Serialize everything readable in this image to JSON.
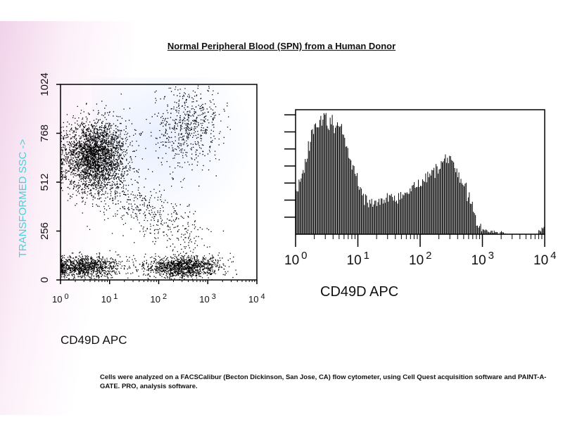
{
  "title": "Normal Peripheral Blood (SPN) from a Human Donor",
  "footnote": "Cells were analyzed on a FACSCalibur (Becton Dickinson, San Jose, CA) flow cytometer, using Cell Quest acquisition software and PAINT-A-GATE. PRO, analysis software.",
  "colors": {
    "ylabel": "#4fd0d8",
    "ink": "#000000"
  },
  "chart_data": [
    {
      "type": "scatter",
      "xlabel": "CD49D APC",
      "ylabel": "TRANSFORMED SSC ->",
      "x_scale": "log",
      "xlim": [
        1,
        10000
      ],
      "ylim": [
        0,
        1024
      ],
      "x_ticks": [
        {
          "base": "10",
          "exp": "0",
          "value": 1
        },
        {
          "base": "10",
          "exp": "1",
          "value": 10
        },
        {
          "base": "10",
          "exp": "2",
          "value": 100
        },
        {
          "base": "10",
          "exp": "3",
          "value": 1000
        },
        {
          "base": "10",
          "exp": "4",
          "value": 10000
        }
      ],
      "y_ticks": [
        "0",
        "256",
        "512",
        "768",
        "1024"
      ],
      "populations": [
        {
          "x_center": 5,
          "y_center": 650,
          "count_share": 0.45,
          "note": "dense upper-left cluster"
        },
        {
          "x_center": 3,
          "y_center": 70,
          "count_share": 0.17,
          "note": "lower-left cluster"
        },
        {
          "x_center": 300,
          "y_center": 70,
          "count_share": 0.2,
          "note": "lower-right cluster"
        },
        {
          "x_center": 400,
          "y_center": 800,
          "count_share": 0.1,
          "note": "upper-right diffuse"
        },
        {
          "x_center": 50,
          "y_center": 350,
          "count_share": 0.08,
          "note": "diagonal scatter"
        }
      ]
    },
    {
      "type": "bar",
      "subtype": "histogram",
      "xlabel": "CD49D APC",
      "x_scale": "log",
      "xlim": [
        1,
        10000
      ],
      "x_ticks": [
        {
          "base": "10",
          "exp": "0",
          "value": 1
        },
        {
          "base": "10",
          "exp": "1",
          "value": 10
        },
        {
          "base": "10",
          "exp": "2",
          "value": 100
        },
        {
          "base": "10",
          "exp": "3",
          "value": 1000
        },
        {
          "base": "10",
          "exp": "4",
          "value": 10000
        }
      ],
      "y_major_ticks": 7,
      "ymax": 100,
      "log_x": [
        0.0,
        0.05,
        0.1,
        0.15,
        0.2,
        0.25,
        0.3,
        0.35,
        0.4,
        0.45,
        0.5,
        0.55,
        0.6,
        0.65,
        0.7,
        0.75,
        0.8,
        0.85,
        0.9,
        0.95,
        1.0,
        1.05,
        1.1,
        1.15,
        1.2,
        1.25,
        1.3,
        1.35,
        1.4,
        1.45,
        1.5,
        1.55,
        1.6,
        1.65,
        1.7,
        1.75,
        1.8,
        1.85,
        1.9,
        1.95,
        2.0,
        2.05,
        2.1,
        2.15,
        2.2,
        2.25,
        2.3,
        2.35,
        2.4,
        2.45,
        2.5,
        2.55,
        2.6,
        2.65,
        2.7,
        2.75,
        2.8,
        2.85,
        2.9,
        2.95,
        3.0,
        3.05,
        3.1,
        3.15,
        3.2,
        3.25,
        3.3,
        3.35,
        3.4,
        3.45,
        3.5,
        3.55,
        3.6,
        3.65,
        3.7,
        3.75,
        3.8,
        3.85,
        3.9,
        3.95
      ],
      "counts": [
        38,
        42,
        48,
        58,
        70,
        84,
        90,
        88,
        92,
        95,
        88,
        92,
        85,
        90,
        86,
        78,
        72,
        62,
        55,
        46,
        38,
        32,
        28,
        26,
        25,
        27,
        24,
        28,
        26,
        30,
        28,
        31,
        29,
        32,
        30,
        34,
        33,
        36,
        38,
        42,
        40,
        44,
        46,
        48,
        50,
        52,
        56,
        58,
        62,
        58,
        55,
        50,
        46,
        42,
        38,
        30,
        24,
        16,
        10,
        6,
        4,
        3,
        2,
        2,
        1,
        1,
        2,
        1,
        0,
        0,
        0,
        0,
        0,
        0,
        0,
        0,
        0,
        0,
        3,
        5
      ]
    }
  ]
}
